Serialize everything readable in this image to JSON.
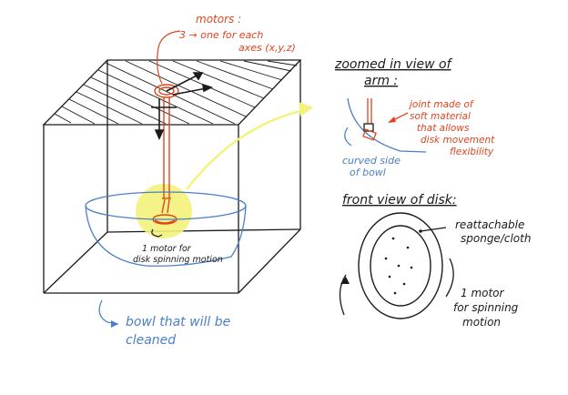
{
  "colors": {
    "ink": "#1b1b1b",
    "red": "#e0441e",
    "blue": "#4a7fc8",
    "highlight": "#f3f27a"
  },
  "labels": {
    "motors_line1": "motors :",
    "motors_line2": "3 → one for each",
    "motors_line3": "axes (x,y,z)",
    "disk_motor_line1": "1 motor for",
    "disk_motor_line2": "disk spinning motion",
    "bowl_line1": "bowl that will be",
    "bowl_line2": "cleaned",
    "zoom_title_line1": "zoomed in view of",
    "zoom_title_line2": "arm :",
    "joint_line1": "joint made of",
    "joint_line2": "soft material",
    "joint_line3": "that allows",
    "joint_line4": "disk movement",
    "joint_line5": "flexibility",
    "curved_line1": "curved side",
    "curved_line2": "of bowl",
    "front_title": "front view of disk:",
    "sponge_line1": "reattachable",
    "sponge_line2": "sponge/cloth",
    "spin_line1": "1 motor",
    "spin_line2": "for spinning",
    "spin_line3": "motion"
  }
}
